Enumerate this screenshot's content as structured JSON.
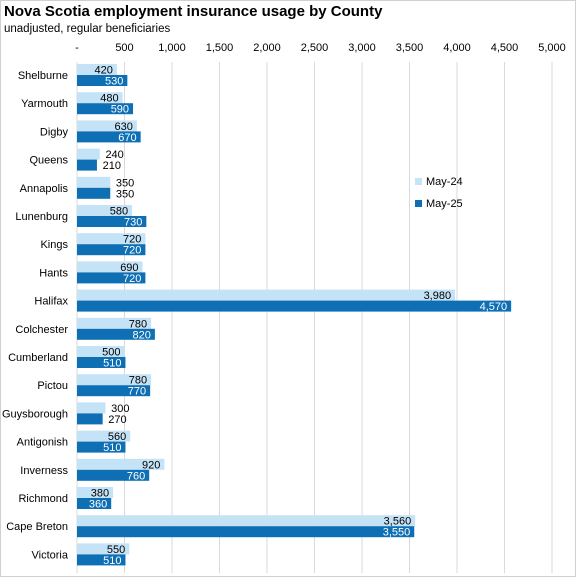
{
  "chart_data": {
    "type": "bar",
    "orientation": "horizontal",
    "title": "Nova Scotia employment insurance usage by County",
    "subtitle": "unadjusted, regular beneficiaries",
    "categories": [
      "Shelburne",
      "Yarmouth",
      "Digby",
      "Queens",
      "Annapolis",
      "Lunenburg",
      "Kings",
      "Hants",
      "Halifax",
      "Colchester",
      "Cumberland",
      "Pictou",
      "Guysborough",
      "Antigonish",
      "Inverness",
      "Richmond",
      "Cape Breton",
      "Victoria"
    ],
    "series": [
      {
        "name": "May-24",
        "color": "#c5e3f6",
        "values": [
          420,
          480,
          630,
          240,
          350,
          580,
          720,
          690,
          3980,
          780,
          500,
          780,
          300,
          560,
          920,
          380,
          3560,
          550
        ]
      },
      {
        "name": "May-25",
        "color": "#0f6fb5",
        "values": [
          530,
          590,
          670,
          210,
          350,
          730,
          720,
          720,
          4570,
          820,
          510,
          770,
          270,
          510,
          760,
          360,
          3550,
          510
        ]
      }
    ],
    "xlim": [
      0,
      5000
    ],
    "x_ticks": [
      0,
      500,
      1000,
      1500,
      2000,
      2500,
      3000,
      3500,
      4000,
      4500,
      5000
    ],
    "x_tick_labels": [
      "-",
      "500",
      "1,000",
      "1,500",
      "2,000",
      "2,500",
      "3,000",
      "3,500",
      "4,000",
      "4,500",
      "5,000"
    ],
    "grid": true,
    "legend_position": "right",
    "data_labels": true
  }
}
